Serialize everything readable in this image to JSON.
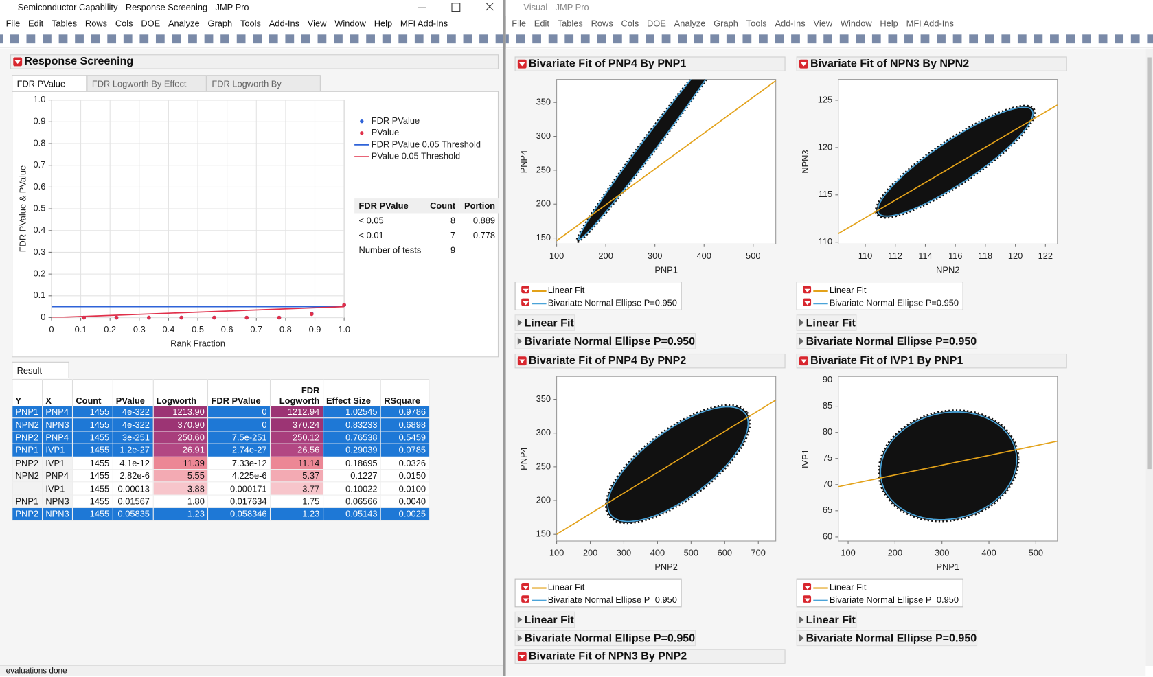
{
  "left_window": {
    "title": "Semiconductor Capability - Response Screening - JMP Pro",
    "menu": [
      "File",
      "Edit",
      "Tables",
      "Rows",
      "Cols",
      "DOE",
      "Analyze",
      "Graph",
      "Tools",
      "Add-Ins",
      "View",
      "Window",
      "Help",
      "MFI Add-Ins"
    ],
    "report_title": "Response Screening",
    "tabs": [
      "FDR PValue Plot",
      "FDR Logworth By Effect Size",
      "FDR Logworth By RSquare"
    ],
    "summary_table": {
      "columns": [
        "FDR PValue",
        "Count",
        "Portion"
      ],
      "rows": [
        [
          "< 0.05",
          "8",
          "0.889"
        ],
        [
          "< 0.01",
          "7",
          "0.778"
        ],
        [
          "Number of tests",
          "9"
        ]
      ]
    },
    "result_tab": "Result Table",
    "result_table": {
      "columns": [
        "Y",
        "X",
        "Count",
        "PValue",
        "Logworth",
        "FDR PValue",
        "FDR Logworth",
        "Effect Size",
        "RSquare"
      ],
      "rows": [
        [
          "PNP1",
          "PNP4",
          "1455",
          "4e-322",
          "1213.90",
          "0",
          "1212.94",
          "1.02545",
          "0.9786"
        ],
        [
          "NPN2",
          "NPN3",
          "1455",
          "4e-322",
          "370.90",
          "0",
          "370.24",
          "0.83233",
          "0.6898"
        ],
        [
          "PNP2",
          "PNP4",
          "1455",
          "3e-251",
          "250.60",
          "7.5e-251",
          "250.12",
          "0.76538",
          "0.5459"
        ],
        [
          "PNP1",
          "IVP1",
          "1455",
          "1.2e-27",
          "26.91",
          "2.74e-27",
          "26.56",
          "0.29039",
          "0.0785"
        ],
        [
          "PNP2",
          "IVP1",
          "1455",
          "4.1e-12",
          "11.39",
          "7.33e-12",
          "11.14",
          "0.18695",
          "0.0326"
        ],
        [
          "NPN2",
          "PNP4",
          "1455",
          "2.82e-6",
          "5.55",
          "4.225e-6",
          "5.37",
          "0.1227",
          "0.0150"
        ],
        [
          null,
          "IVP1",
          "1455",
          "0.00013",
          "3.88",
          "0.000171",
          "3.77",
          "0.10022",
          "0.0100"
        ],
        [
          "PNP1",
          "NPN3",
          "1455",
          "0.01567",
          "1.80",
          "0.017634",
          "1.75",
          "0.06566",
          "0.0040"
        ],
        [
          "PNP2",
          "NPN3",
          "1455",
          "0.05835",
          "1.23",
          "0.058346",
          "1.23",
          "0.05143",
          "0.0025"
        ]
      ]
    },
    "status": "evaluations done"
  },
  "right_window": {
    "title": "Visual - JMP Pro",
    "menu": [
      "File",
      "Edit",
      "Tables",
      "Rows",
      "Cols",
      "DOE",
      "Analyze",
      "Graph",
      "Tools",
      "Add-Ins",
      "View",
      "Window",
      "Help",
      "MFI Add-Ins"
    ],
    "more_report": "Bivariate Fit of NPN3 By PNP2"
  },
  "chart_data": [
    {
      "type": "scatter",
      "x_label": "Rank Fraction",
      "y_label": "FDR PValue & PValue",
      "xlim": [
        0,
        1
      ],
      "ylim": [
        0,
        1
      ],
      "grid": true,
      "xticks": [
        0,
        0.1,
        0.2,
        0.3,
        0.4,
        0.5,
        0.6,
        0.7,
        0.8,
        0.9,
        {
          "value": 1,
          "label": "1.0"
        }
      ],
      "yticks": [
        0,
        0.1,
        0.2,
        0.3,
        0.4,
        0.5,
        0.6,
        0.7,
        0.8,
        0.9,
        {
          "value": 1,
          "label": "1.0"
        }
      ],
      "series": [
        {
          "name": "FDR PValue",
          "color": "#2f63d8",
          "mark": "point",
          "x": [
            0.111,
            0.222,
            0.333,
            0.444,
            0.556,
            0.667,
            0.778,
            0.889,
            1
          ],
          "values": [
            0,
            0,
            0,
            0,
            0,
            0,
            0,
            0.018,
            0.058
          ]
        },
        {
          "name": "PValue",
          "color": "#e0304a",
          "mark": "point",
          "x": [
            0.111,
            0.222,
            0.333,
            0.444,
            0.556,
            0.667,
            0.778,
            0.889,
            1
          ],
          "values": [
            0,
            0,
            0,
            0,
            0,
            0,
            0,
            0.016,
            0.058
          ]
        },
        {
          "name": "FDR PValue 0.05 Threshold",
          "color": "#2f63d8",
          "mark": "line",
          "x": [
            0,
            1
          ],
          "values": [
            0.05,
            0.05
          ]
        },
        {
          "name": "PValue 0.05 Threshold",
          "color": "#e0304a",
          "mark": "line",
          "x": [
            0,
            1
          ],
          "values": [
            0,
            0.05
          ]
        }
      ]
    },
    {
      "type": "scatter",
      "title": "Bivariate Fit of PNP4 By PNP1",
      "x_label": "PNP1",
      "y_label": "PNP4",
      "xlim": [
        100,
        546
      ],
      "ylim": [
        141,
        384
      ],
      "xticks": [
        100,
        200,
        300,
        400,
        500
      ],
      "yticks": [
        150,
        200,
        250,
        300,
        350
      ],
      "series": [
        {
          "name": "Linear Fit",
          "color": "#e3a21a",
          "mark": "line",
          "x": [
            100,
            546
          ],
          "values": [
            146,
            382
          ]
        },
        {
          "name": "Bivariate Normal Ellipse P=0.950",
          "color": "#4aa3d8",
          "mark": "ellipse",
          "ellipse": {
            "center": [
              300,
              298
            ],
            "axis1": [
              155,
              150
            ],
            "axis2": [
              -9,
              9
            ]
          }
        }
      ]
    },
    {
      "type": "scatter",
      "title": "Bivariate Fit of NPN3 By NPN2",
      "x_label": "NPN2",
      "y_label": "NPN3",
      "xlim": [
        108.2,
        122.8
      ],
      "ylim": [
        109.8,
        127.2
      ],
      "xticks": [
        110,
        112,
        114,
        116,
        118,
        120,
        122
      ],
      "yticks": [
        110,
        115,
        120,
        125
      ],
      "series": [
        {
          "name": "Linear Fit",
          "color": "#e3a21a",
          "mark": "line",
          "x": [
            108.2,
            122.8
          ],
          "values": [
            110.9,
            124.5
          ]
        },
        {
          "name": "Bivariate Normal Ellipse P=0.950",
          "color": "#4aa3d8",
          "mark": "ellipse",
          "ellipse": {
            "center": [
              116,
              118.5
            ],
            "axis1": [
              5,
              5.6
            ],
            "axis2": [
              -1.3,
              1.3
            ]
          }
        }
      ]
    },
    {
      "type": "scatter",
      "title": "Bivariate Fit of PNP4 By PNP2",
      "x_label": "PNP2",
      "y_label": "PNP4",
      "xlim": [
        100,
        752
      ],
      "ylim": [
        140,
        384
      ],
      "xticks": [
        100,
        200,
        300,
        400,
        500,
        600,
        700
      ],
      "yticks": [
        150,
        200,
        250,
        300,
        350
      ],
      "series": [
        {
          "name": "Linear Fit",
          "color": "#e3a21a",
          "mark": "line",
          "x": [
            100,
            752
          ],
          "values": [
            150,
            349
          ]
        },
        {
          "name": "Bivariate Normal Ellipse P=0.950",
          "color": "#4aa3d8",
          "mark": "ellipse",
          "ellipse": {
            "center": [
              461,
              254
            ],
            "axis1": [
              200,
              75
            ],
            "axis2": [
              -60,
              40
            ]
          }
        }
      ]
    },
    {
      "type": "scatter",
      "title": "Bivariate Fit of IVP1 By PNP1",
      "x_label": "PNP1",
      "y_label": "IVP1",
      "xlim": [
        79,
        546
      ],
      "ylim": [
        59.2,
        90.7
      ],
      "xticks": [
        100,
        200,
        300,
        400,
        500
      ],
      "yticks": [
        60,
        65,
        70,
        75,
        80,
        85,
        90
      ],
      "series": [
        {
          "name": "Linear Fit",
          "color": "#e3a21a",
          "mark": "line",
          "x": [
            79,
            546
          ],
          "values": [
            69.6,
            78.3
          ]
        },
        {
          "name": "Bivariate Normal Ellipse P=0.950",
          "color": "#4aa3d8",
          "mark": "ellipse",
          "ellipse": {
            "center": [
              314,
              73.6
            ],
            "axis1": [
              145,
              1.5
            ],
            "axis2": [
              -5,
              10.2
            ]
          }
        }
      ]
    }
  ]
}
